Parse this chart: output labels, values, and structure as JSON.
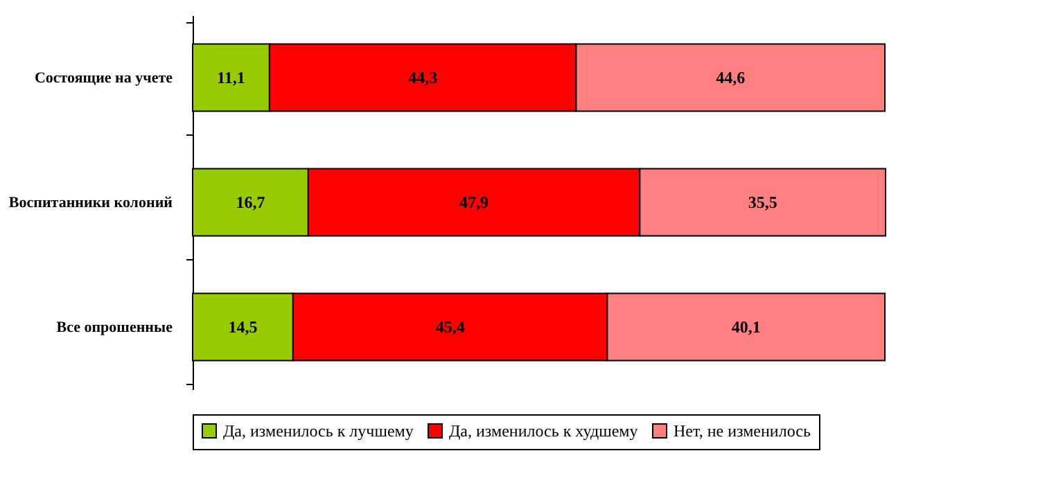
{
  "chart_data": {
    "type": "bar",
    "orientation": "horizontal",
    "stacked": true,
    "categories": [
      "Состоящие на учете",
      "Воспитанники колоний",
      "Все опрошенные"
    ],
    "series": [
      {
        "name": "Да, изменилось к лучшему",
        "color": "#99cc00",
        "values": [
          11.1,
          16.7,
          14.5
        ],
        "value_labels": [
          "11,1",
          "16,7",
          "14,5"
        ]
      },
      {
        "name": "Да, изменилось к худшему",
        "color": "#ff0000",
        "values": [
          44.3,
          47.9,
          45.4
        ],
        "value_labels": [
          "44,3",
          "47,9",
          "45,4"
        ]
      },
      {
        "name": "Нет, не изменилось",
        "color": "#ff8080",
        "values": [
          44.6,
          35.5,
          40.1
        ],
        "value_labels": [
          "44,6",
          "35,5",
          "40,1"
        ]
      }
    ],
    "xlim": [
      0,
      100.1
    ],
    "tick_labels": "y",
    "legend": "bottom"
  }
}
